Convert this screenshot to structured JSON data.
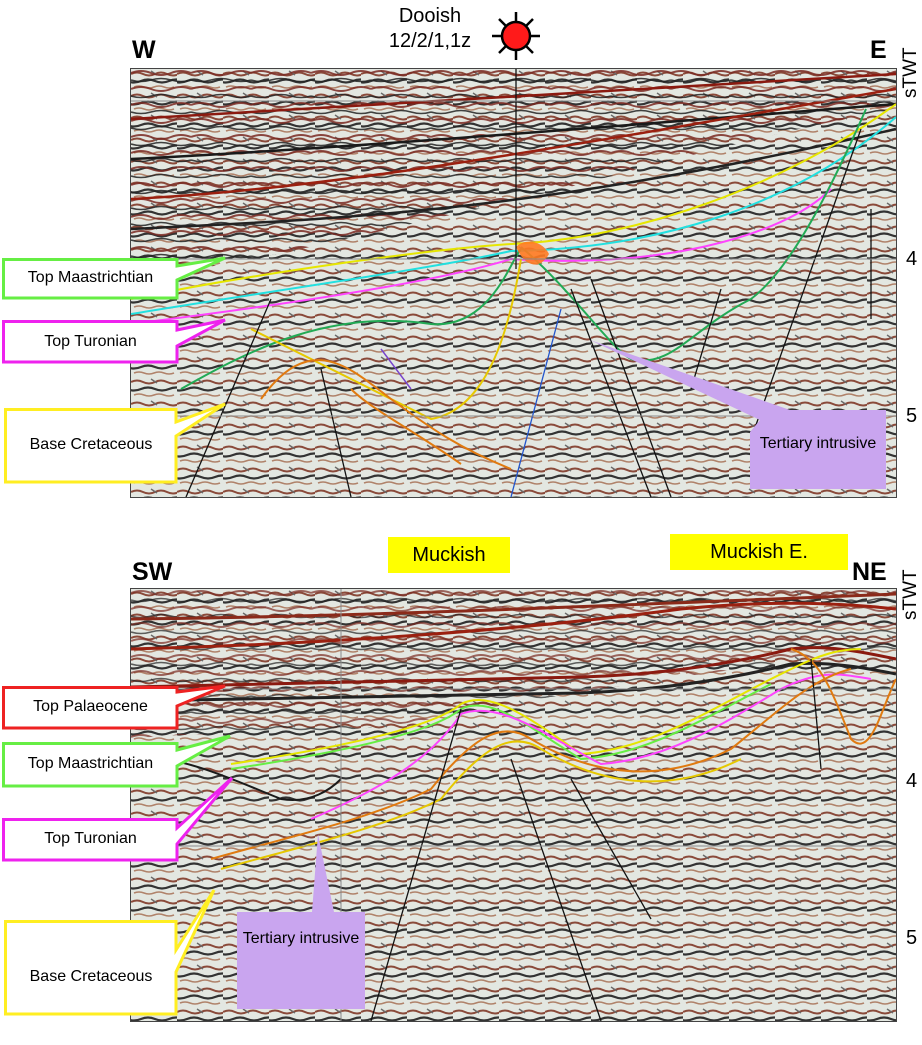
{
  "top_section": {
    "west_label": "W",
    "east_label": "E",
    "well_name": "Dooish",
    "well_id": "12/2/1,1z",
    "axis_unit": "sTWT",
    "ticks": [
      "4",
      "5"
    ],
    "callouts": [
      {
        "text": "Top Maastrichtian",
        "color": "#66ee44"
      },
      {
        "text": "Top Turonian",
        "color": "#ee22ee"
      },
      {
        "text": "Base Cretaceous",
        "color": "#ffee22"
      }
    ],
    "intrusive_label": "Tertiary intrusive",
    "intrusive_color": "#c9a5ef"
  },
  "bottom_section": {
    "west_label": "SW",
    "east_label": "NE",
    "prospect_1": "Muckish",
    "prospect_2": "Muckish E.",
    "axis_unit": "sTWT",
    "ticks": [
      "4",
      "5"
    ],
    "callouts": [
      {
        "text": "Top Palaeocene",
        "color": "#ee2222"
      },
      {
        "text": "Top Maastrichtian",
        "color": "#66ee44"
      },
      {
        "text": "Top Turonian",
        "color": "#ee22ee"
      },
      {
        "text": "Base Cretaceous",
        "color": "#ffee22"
      }
    ],
    "intrusive_label": "Tertiary intrusive",
    "intrusive_color": "#c9a5ef",
    "highlight_color": "#ffff00"
  }
}
